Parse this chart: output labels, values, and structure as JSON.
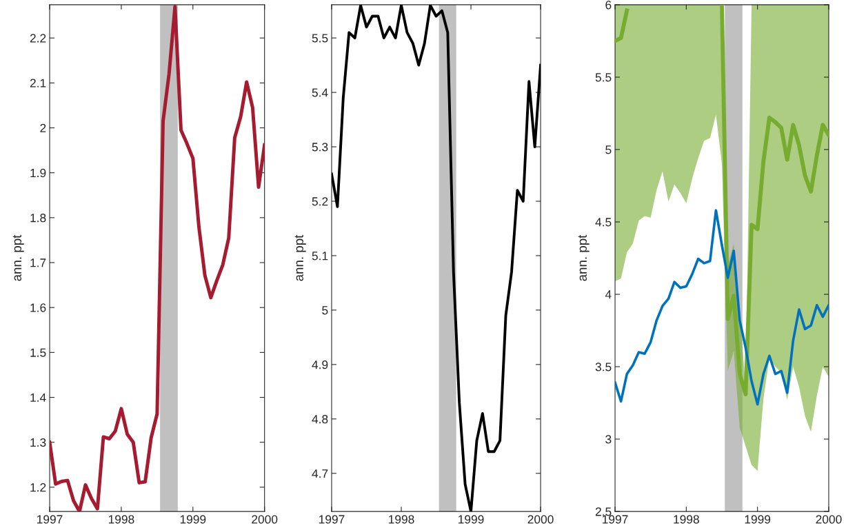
{
  "chart_data": [
    {
      "type": "line",
      "ylabel": "ann. ppt",
      "x": [
        "1997-01",
        "1997-02",
        "1997-03",
        "1997-04",
        "1997-05",
        "1997-06",
        "1997-07",
        "1997-08",
        "1997-09",
        "1997-10",
        "1997-11",
        "1997-12",
        "1998-01",
        "1998-02",
        "1998-03",
        "1998-04",
        "1998-05",
        "1998-06",
        "1998-07",
        "1998-08",
        "1998-09",
        "1998-10",
        "1998-11",
        "1998-12",
        "1999-01",
        "1999-02",
        "1999-03",
        "1999-04",
        "1999-05",
        "1999-06",
        "1999-07",
        "1999-08",
        "1999-09",
        "1999-10",
        "1999-11",
        "1999-12",
        "2000-01"
      ],
      "series": [
        {
          "color": "#a51c30",
          "values": [
            1.3,
            1.207,
            1.213,
            1.215,
            1.17,
            1.146,
            1.205,
            1.175,
            1.152,
            1.312,
            1.308,
            1.325,
            1.375,
            1.318,
            1.3,
            1.21,
            1.212,
            1.31,
            1.363,
            2.015,
            2.12,
            2.27,
            1.995,
            1.965,
            1.932,
            1.78,
            1.672,
            1.622,
            1.66,
            1.695,
            1.755,
            1.978,
            2.025,
            2.102,
            2.045,
            1.868,
            1.962
          ]
        }
      ],
      "xlim": [
        "1997-01",
        "2000-01"
      ],
      "xticks": [
        "1997",
        "1998",
        "1999",
        "2000"
      ],
      "ylim": [
        1.146,
        2.274
      ],
      "yticks": [
        1.2,
        1.3,
        1.4,
        1.5,
        1.6,
        1.7,
        1.8,
        1.9,
        2,
        2.1,
        2.2
      ],
      "bands": [
        {
          "axis": "x",
          "from": "1998-07-16",
          "to": "1998-10-15",
          "color": "#c0c0c0"
        }
      ]
    },
    {
      "type": "line",
      "ylabel": "ann. ppt",
      "x": [
        "1997-01",
        "1997-02",
        "1997-03",
        "1997-04",
        "1997-05",
        "1997-06",
        "1997-07",
        "1997-08",
        "1997-09",
        "1997-10",
        "1997-11",
        "1997-12",
        "1998-01",
        "1998-02",
        "1998-03",
        "1998-04",
        "1998-05",
        "1998-06",
        "1998-07",
        "1998-08",
        "1998-09",
        "1998-10",
        "1998-11",
        "1998-12",
        "1999-01",
        "1999-02",
        "1999-03",
        "1999-04",
        "1999-05",
        "1999-06",
        "1999-07",
        "1999-08",
        "1999-09",
        "1999-10",
        "1999-11",
        "1999-12",
        "2000-01"
      ],
      "series": [
        {
          "color": "#000000",
          "values": [
            5.25,
            5.19,
            5.39,
            5.51,
            5.5,
            5.56,
            5.52,
            5.54,
            5.54,
            5.5,
            5.52,
            5.5,
            5.56,
            5.51,
            5.49,
            5.45,
            5.49,
            5.56,
            5.54,
            5.55,
            5.51,
            5.07,
            4.83,
            4.68,
            4.63,
            4.76,
            4.81,
            4.74,
            4.74,
            4.76,
            4.99,
            5.07,
            5.22,
            5.2,
            5.42,
            5.3,
            5.45
          ]
        }
      ],
      "xlim": [
        "1997-01",
        "2000-01"
      ],
      "xticks": [
        "1997",
        "1998",
        "1999",
        "2000"
      ],
      "ylim": [
        4.63,
        5.561
      ],
      "yticks": [
        4.7,
        4.8,
        4.9,
        5,
        5.1,
        5.2,
        5.3,
        5.4,
        5.5
      ],
      "bands": [
        {
          "axis": "x",
          "from": "1998-07-16",
          "to": "1998-10-15",
          "color": "#c0c0c0"
        }
      ]
    },
    {
      "type": "line",
      "ylabel": "ann. ppt",
      "x": [
        "1997-01",
        "1997-02",
        "1997-03",
        "1997-04",
        "1997-05",
        "1997-06",
        "1997-07",
        "1997-08",
        "1997-09",
        "1997-10",
        "1997-11",
        "1997-12",
        "1998-01",
        "1998-02",
        "1998-03",
        "1998-04",
        "1998-05",
        "1998-06",
        "1998-07",
        "1998-08",
        "1998-09",
        "1998-10",
        "1998-11",
        "1998-12",
        "1999-01",
        "1999-02",
        "1999-03",
        "1999-04",
        "1999-05",
        "1999-06",
        "1999-07",
        "1999-08",
        "1999-09",
        "1999-10",
        "1999-11",
        "1999-12",
        "2000-01"
      ],
      "series": [
        {
          "color": "#77ac30",
          "values": [
            5.75,
            5.77,
            5.96,
            null,
            null,
            null,
            null,
            null,
            null,
            null,
            null,
            null,
            null,
            null,
            null,
            null,
            null,
            null,
            6.0,
            3.83,
            3.99,
            3.45,
            3.31,
            4.48,
            4.45,
            4.92,
            5.22,
            5.19,
            5.15,
            4.93,
            5.17,
            5.03,
            4.82,
            4.71,
            4.96,
            5.17,
            5.1
          ],
          "lower": [
            4.09,
            4.11,
            4.29,
            4.35,
            4.51,
            4.54,
            4.53,
            4.72,
            4.85,
            4.64,
            4.76,
            4.7,
            4.63,
            4.8,
            4.94,
            5.06,
            5.08,
            5.24,
            4.9,
            3.47,
            3.61,
            3.08,
            2.95,
            2.82,
            2.78,
            3.28,
            3.56,
            3.5,
            3.46,
            3.27,
            3.5,
            3.36,
            3.16,
            3.05,
            3.3,
            3.5,
            3.43
          ],
          "upper": [
            6,
            6,
            6,
            6,
            6,
            6,
            6,
            6,
            6,
            6,
            6,
            6,
            6,
            6,
            6,
            6,
            6,
            6,
            6,
            4.2,
            4.35,
            3.9,
            3.35,
            6,
            6,
            6,
            6,
            6,
            6,
            6,
            6,
            6,
            6,
            6,
            6,
            6,
            6
          ]
        },
        {
          "color": "#0072bd",
          "values": [
            3.39,
            3.26,
            3.45,
            3.51,
            3.6,
            3.59,
            3.67,
            3.82,
            3.92,
            3.97,
            4.085,
            4.045,
            4.055,
            4.14,
            4.245,
            4.215,
            4.23,
            4.58,
            4.34,
            4.115,
            4.3,
            3.82,
            3.63,
            3.4,
            3.24,
            3.45,
            3.575,
            3.45,
            3.47,
            3.32,
            3.68,
            3.895,
            3.76,
            3.785,
            3.925,
            3.845,
            3.925
          ]
        }
      ],
      "xlim": [
        "1997-01",
        "2000-01"
      ],
      "xticks": [
        "1997",
        "1998",
        "1999",
        "2000"
      ],
      "ylim": [
        2.5,
        6
      ],
      "yticks": [
        2.5,
        3,
        3.5,
        4,
        4.5,
        5,
        5.5,
        6
      ],
      "bands": [
        {
          "axis": "x",
          "from": "1998-07-16",
          "to": "1998-10-15",
          "color": "#c0c0c0"
        }
      ]
    }
  ]
}
